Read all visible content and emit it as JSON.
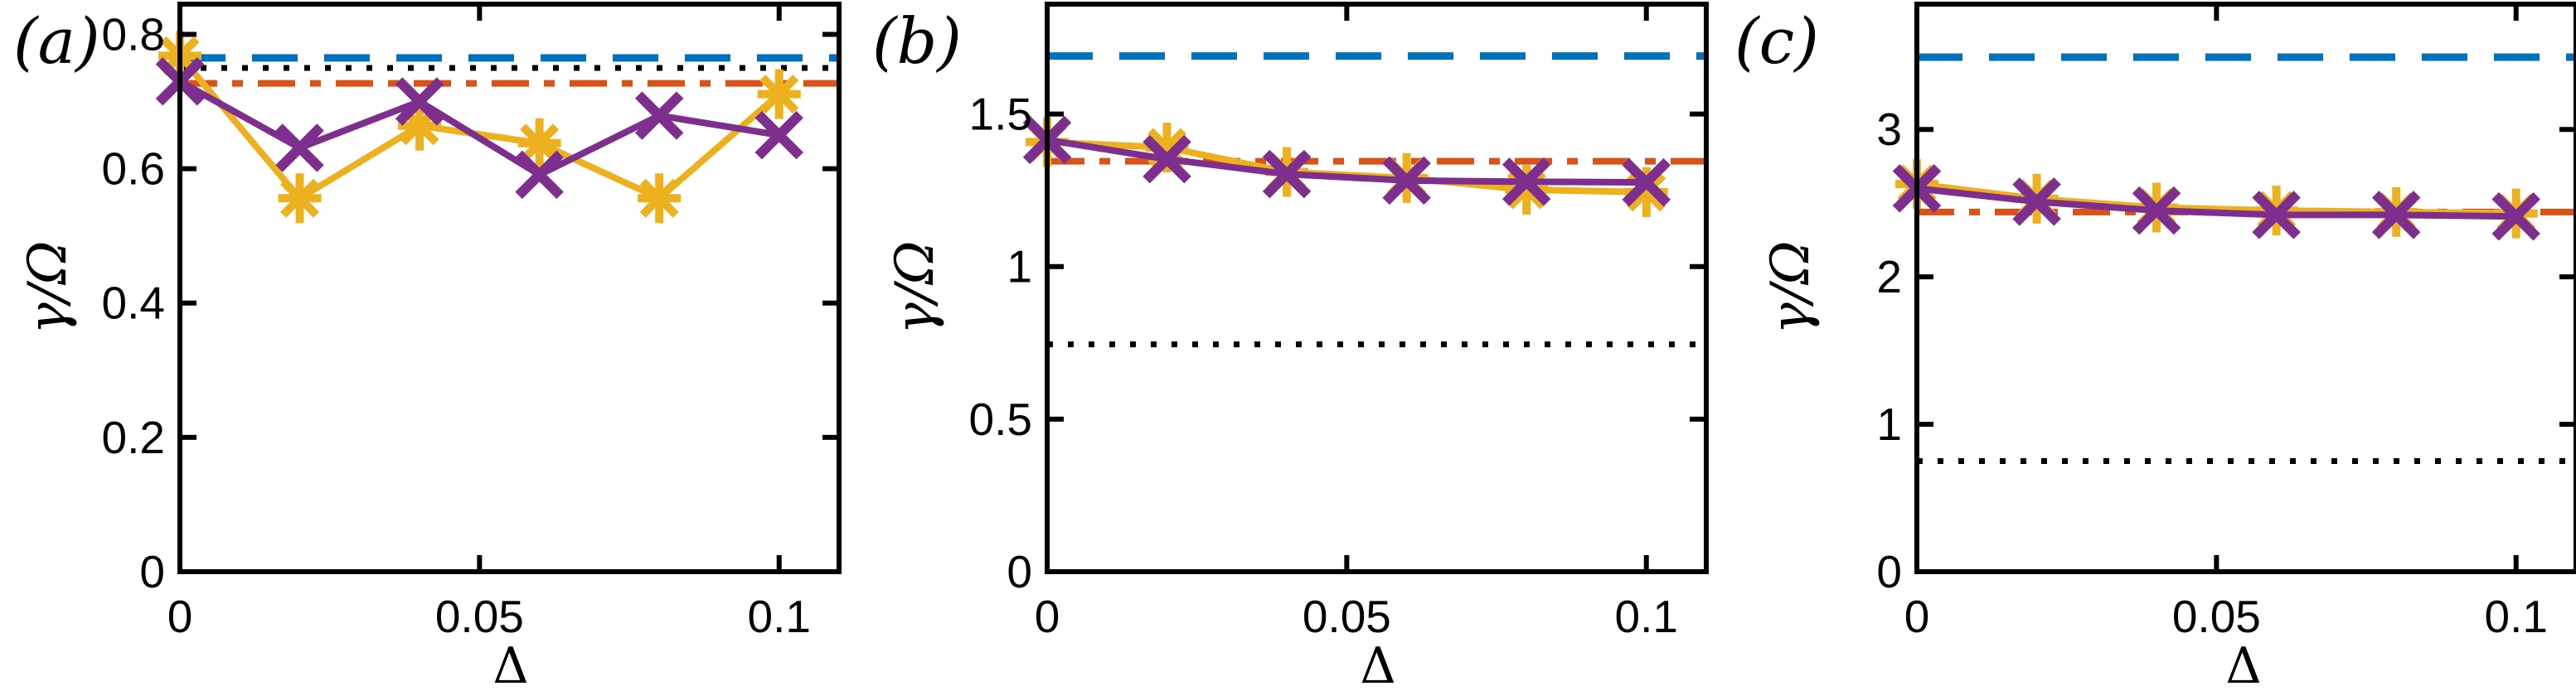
{
  "figure": {
    "background": "#ffffff",
    "axis_color": "#000000"
  },
  "chart_data": [
    {
      "type": "line",
      "panel_label": "(a)",
      "xlabel": "Δ",
      "ylabel": "γ/Ω",
      "xlim": [
        0,
        0.11
      ],
      "ylim": [
        0,
        0.845
      ],
      "xticks": [
        0,
        0.05,
        0.1
      ],
      "xtick_labels": [
        "0",
        "0.05",
        "0.1"
      ],
      "yticks": [
        0,
        0.2,
        0.4,
        0.6,
        0.8
      ],
      "ytick_labels": [
        "0",
        "0.2",
        "0.4",
        "0.6",
        "0.8"
      ],
      "grid": false,
      "legend": "none",
      "x": [
        0,
        0.02,
        0.04,
        0.06,
        0.08,
        0.1
      ],
      "series": [
        {
          "name": "yellow-asterisk-series",
          "marker": "asterisk",
          "color": "#EDB120",
          "values": [
            0.768,
            0.556,
            0.664,
            0.638,
            0.556,
            0.711
          ]
        },
        {
          "name": "purple-cross-series",
          "marker": "x",
          "color": "#7E2F8E",
          "values": [
            0.73,
            0.631,
            0.7,
            0.591,
            0.679,
            0.65
          ]
        }
      ],
      "hlines": [
        {
          "name": "blue-dashed-line",
          "style": "dashed",
          "color": "#0072BD",
          "y": 0.765
        },
        {
          "name": "black-dotted-line",
          "style": "dotted",
          "color": "#000000",
          "y": 0.75
        },
        {
          "name": "red-dashdot-line",
          "style": "dashdot",
          "color": "#D95319",
          "y": 0.727
        }
      ]
    },
    {
      "type": "line",
      "panel_label": "(b)",
      "xlabel": "Δ",
      "ylabel": "γ/Ω",
      "xlim": [
        0,
        0.11
      ],
      "ylim": [
        0,
        1.86
      ],
      "xticks": [
        0,
        0.05,
        0.1
      ],
      "xtick_labels": [
        "0",
        "0.05",
        "0.1"
      ],
      "yticks": [
        0,
        0.5,
        1,
        1.5
      ],
      "ytick_labels": [
        "0",
        "0.5",
        "1",
        "1.5"
      ],
      "grid": false,
      "legend": "none",
      "x": [
        0,
        0.02,
        0.04,
        0.06,
        0.08,
        0.1
      ],
      "series": [
        {
          "name": "yellow-asterisk-series",
          "marker": "asterisk",
          "color": "#EDB120",
          "values": [
            1.408,
            1.39,
            1.31,
            1.29,
            1.252,
            1.244
          ]
        },
        {
          "name": "purple-cross-series",
          "marker": "x",
          "color": "#7E2F8E",
          "values": [
            1.415,
            1.352,
            1.303,
            1.282,
            1.278,
            1.276
          ]
        }
      ],
      "hlines": [
        {
          "name": "blue-dashed-line",
          "style": "dashed",
          "color": "#0072BD",
          "y": 1.69
        },
        {
          "name": "black-dotted-line",
          "style": "dotted",
          "color": "#000000",
          "y": 0.745
        },
        {
          "name": "red-dashdot-line",
          "style": "dashdot",
          "color": "#D95319",
          "y": 1.345
        }
      ]
    },
    {
      "type": "line",
      "panel_label": "(c)",
      "xlabel": "Δ",
      "ylabel": "γ/Ω",
      "xlim": [
        0,
        0.11
      ],
      "ylim": [
        0,
        3.85
      ],
      "xticks": [
        0,
        0.05,
        0.1
      ],
      "xtick_labels": [
        "0",
        "0.05",
        "0.1"
      ],
      "yticks": [
        0,
        1,
        2,
        3
      ],
      "ytick_labels": [
        "0",
        "1",
        "2",
        "3"
      ],
      "grid": false,
      "legend": "none",
      "x": [
        0,
        0.02,
        0.04,
        0.06,
        0.08,
        0.1
      ],
      "series": [
        {
          "name": "yellow-asterisk-series",
          "marker": "asterisk",
          "color": "#EDB120",
          "values": [
            2.63,
            2.53,
            2.47,
            2.45,
            2.44,
            2.43
          ]
        },
        {
          "name": "purple-cross-series",
          "marker": "x",
          "color": "#7E2F8E",
          "values": [
            2.6,
            2.51,
            2.45,
            2.42,
            2.42,
            2.41
          ]
        }
      ],
      "hlines": [
        {
          "name": "blue-dashed-line",
          "style": "dashed",
          "color": "#0072BD",
          "y": 3.49
        },
        {
          "name": "black-dotted-line",
          "style": "dotted",
          "color": "#000000",
          "y": 0.75
        },
        {
          "name": "red-dashdot-line",
          "style": "dashdot",
          "color": "#D95319",
          "y": 2.44
        }
      ]
    }
  ]
}
